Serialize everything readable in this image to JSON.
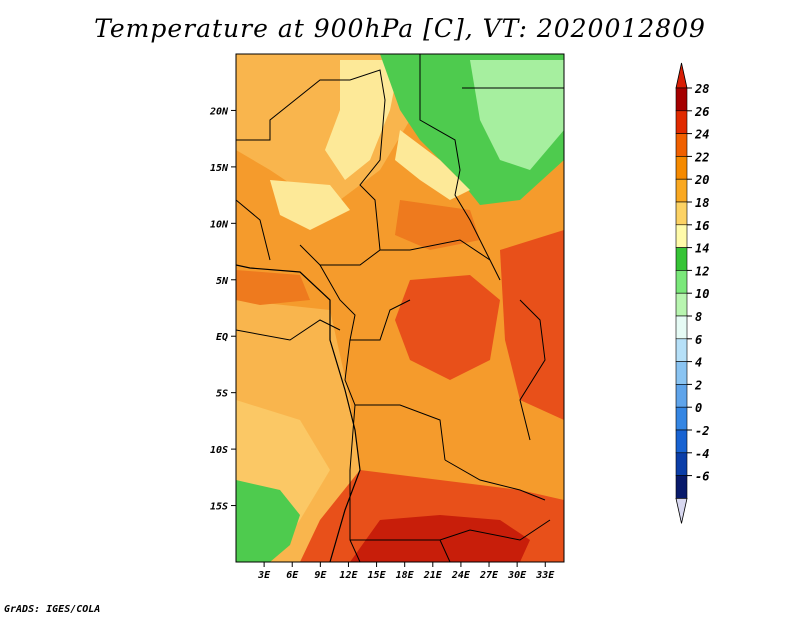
{
  "title": "Temperature at 900hPa [C], VT: 2020012809",
  "footer": "GrADS: IGES/COLA",
  "map": {
    "lon_range": [
      0,
      35
    ],
    "lat_range": [
      -20,
      25
    ],
    "lon_ticks": [
      "3E",
      "6E",
      "9E",
      "12E",
      "15E",
      "18E",
      "21E",
      "24E",
      "27E",
      "30E",
      "33E"
    ],
    "lon_tick_values": [
      3,
      6,
      9,
      12,
      15,
      18,
      21,
      24,
      27,
      30,
      33
    ],
    "lat_ticks": [
      "20N",
      "15N",
      "10N",
      "5N",
      "EQ",
      "5S",
      "10S",
      "15S"
    ],
    "lat_tick_values": [
      20,
      15,
      10,
      5,
      0,
      -5,
      -10,
      -15
    ]
  },
  "colorbar": {
    "labels": [
      "28",
      "26",
      "24",
      "22",
      "20",
      "18",
      "16",
      "14",
      "12",
      "10",
      "8",
      "6",
      "4",
      "2",
      "0",
      "-2",
      "-4",
      "-6"
    ],
    "colors": [
      "#a50000",
      "#e02a00",
      "#f06000",
      "#f58a00",
      "#f9a821",
      "#fcd264",
      "#fffbaa",
      "#36c436",
      "#7ae87a",
      "#b8f5b0",
      "#e6fbf5",
      "#b6e0f8",
      "#8ac4f2",
      "#5fa4ea",
      "#3586e3",
      "#1863d2",
      "#0b3ea8",
      "#081a6b"
    ],
    "tri_top": "#d81e05",
    "tri_bottom": "#d8d8f0"
  },
  "colors": {
    "ocean_left": "#f9b54d",
    "land_base": "#f59b2c",
    "hot": "#e8501a",
    "very_hot": "#c81e0a",
    "cool_green": "#4ecb4e",
    "light_green": "#a6ef9f",
    "pale": "#fde998"
  }
}
